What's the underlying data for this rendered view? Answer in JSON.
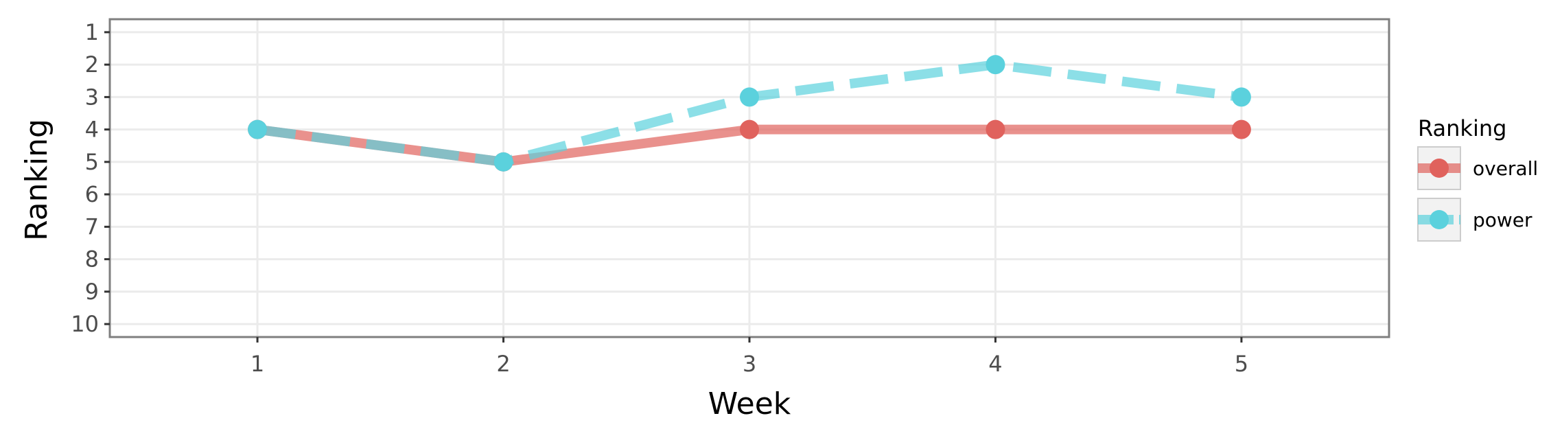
{
  "chart_data": {
    "type": "line",
    "xlabel": "Week",
    "ylabel": "Ranking",
    "x": [
      1,
      2,
      3,
      4,
      5
    ],
    "xlim": [
      0.4,
      5.6
    ],
    "ylim": [
      10.4,
      0.6
    ],
    "y_reversed": true,
    "xticks": [
      "1",
      "2",
      "3",
      "4",
      "5"
    ],
    "yticks": [
      "1",
      "2",
      "3",
      "4",
      "5",
      "6",
      "7",
      "8",
      "9",
      "10"
    ],
    "grid": true,
    "legend": {
      "title": "Ranking",
      "position": "right"
    },
    "series": [
      {
        "name": "overall",
        "values": [
          4,
          5,
          4,
          4,
          4
        ],
        "color": "#e0625d",
        "line_style": "solid"
      },
      {
        "name": "power",
        "values": [
          4,
          5,
          3,
          2,
          3
        ],
        "color": "#5bd1dd",
        "line_style": "dashed"
      }
    ]
  }
}
